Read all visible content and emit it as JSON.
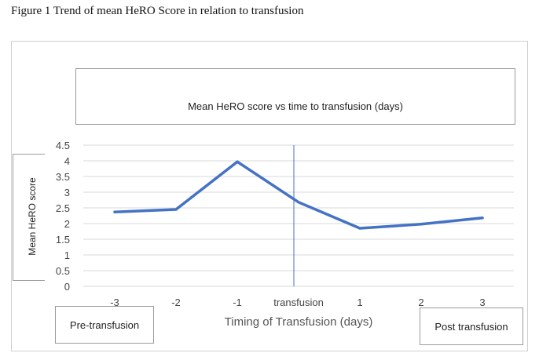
{
  "figure_caption": "Figure 1 Trend of mean HeRO Score in relation to transfusion",
  "chart_data": {
    "type": "line",
    "title": "Mean HeRO score vs time to transfusion (days)",
    "xlabel": "Timing of Transfusion (days)",
    "ylabel": "Mean HeRO score",
    "categories": [
      "-3",
      "-2",
      "-1",
      "transfusion",
      "1",
      "2",
      "3"
    ],
    "series": [
      {
        "values": [
          2.37,
          2.45,
          3.97,
          2.68,
          1.85,
          1.98,
          2.18
        ]
      }
    ],
    "ylim": [
      0,
      4.5
    ],
    "yticks": [
      "0",
      "0.5",
      "1",
      "1.5",
      "2",
      "2.5",
      "3",
      "3.5",
      "4",
      "4.5"
    ],
    "grid": true,
    "line_color": "#4472c4",
    "divider_color": "#4472c4",
    "divider_category": "transfusion",
    "annotations": {
      "pre": "Pre-transfusion",
      "post": "Post transfusion"
    }
  }
}
